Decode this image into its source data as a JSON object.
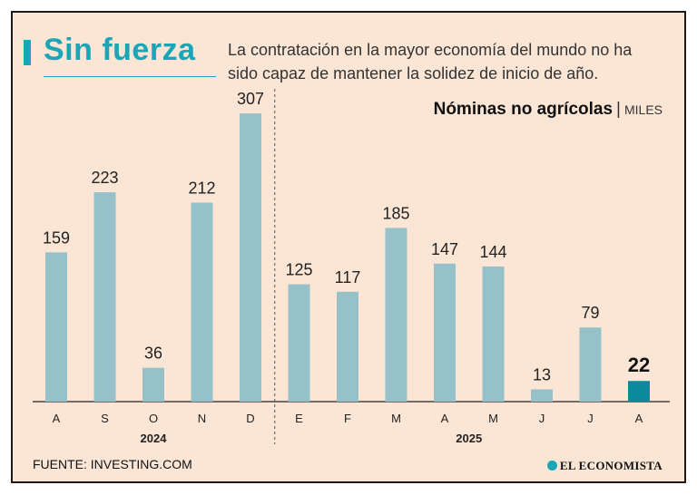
{
  "header": {
    "title": "Sin fuerza",
    "subtitle": "La contratación en la mayor economía del mundo no ha sido capaz de mantener la solidez de inicio de año.",
    "chart_title": "Nóminas no agrícolas",
    "separator": "|",
    "unit": "MILES"
  },
  "footer": {
    "source": "FUENTE: INVESTING.COM",
    "logo": "EL ECONOMISTA"
  },
  "colors": {
    "bar": "#96c1c9",
    "highlight": "#0c8a9c",
    "accent": "#1aa6b7",
    "background": "#fbe6d6"
  },
  "chart_data": {
    "type": "bar",
    "title": "Nóminas no agrícolas",
    "ylabel": "MILES",
    "xlabel": "",
    "categories": [
      "A",
      "S",
      "O",
      "N",
      "D",
      "E",
      "F",
      "M",
      "A",
      "M",
      "J",
      "J",
      "A"
    ],
    "values": [
      159,
      223,
      36,
      212,
      307,
      125,
      117,
      185,
      147,
      144,
      13,
      79,
      22
    ],
    "years": [
      {
        "label": "2024",
        "from": 0,
        "to": 4
      },
      {
        "label": "2025",
        "from": 5,
        "to": 12
      }
    ],
    "highlight_index": 12,
    "ylim": [
      0,
      310
    ],
    "grid": false
  }
}
